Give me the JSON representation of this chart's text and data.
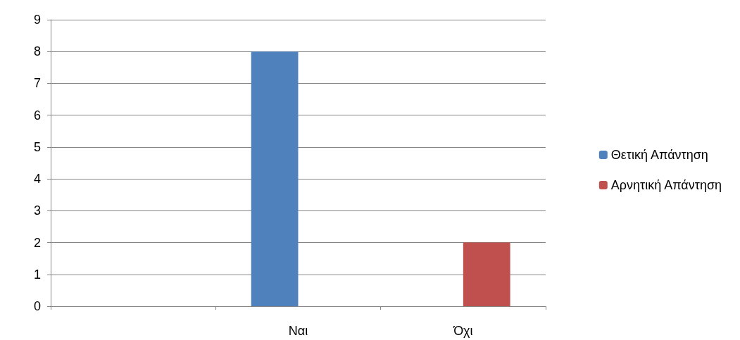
{
  "chart_data": {
    "type": "bar",
    "categories": [
      null,
      "Ναι",
      "Όχι"
    ],
    "series": [
      {
        "name": "Θετική Απάντηση",
        "color": "#4f81bd",
        "values": [
          null,
          8,
          null
        ]
      },
      {
        "name": "Αρνητική Απάντηση",
        "color": "#c0504d",
        "values": [
          null,
          null,
          2
        ]
      }
    ],
    "ylim": [
      0,
      9
    ],
    "yticks": [
      0,
      1,
      2,
      3,
      4,
      5,
      6,
      7,
      8,
      9
    ],
    "grid": "y",
    "legend": "right"
  }
}
